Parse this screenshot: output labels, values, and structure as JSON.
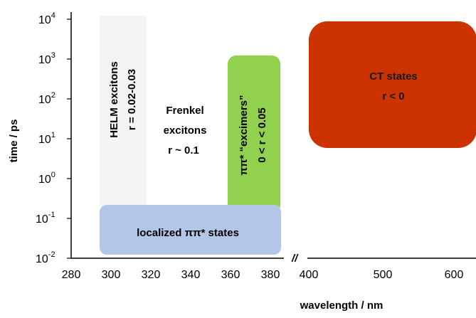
{
  "axes": {
    "xlabel": "wavelength / nm",
    "ylabel": "time / ps",
    "x_ticks_left": [
      "280",
      "300",
      "320",
      "340",
      "360",
      "380"
    ],
    "x_ticks_right": [
      "400",
      "500",
      "600"
    ],
    "y_ticks": [
      {
        "base": "10",
        "exp": "-2"
      },
      {
        "base": "10",
        "exp": "-1"
      },
      {
        "base": "10",
        "exp": "0"
      },
      {
        "base": "10",
        "exp": "1"
      },
      {
        "base": "10",
        "exp": "2"
      },
      {
        "base": "10",
        "exp": "3"
      },
      {
        "base": "10",
        "exp": "4"
      }
    ],
    "break_mark": "//"
  },
  "regions": {
    "helm": {
      "line1": "HELM excitons",
      "line2": "r = 0.02-0.03"
    },
    "frenkel": {
      "line1": "Frenkel",
      "line2": "excitons",
      "line3": "r ~ 0.1"
    },
    "excimers": {
      "line1": "ππ* “excimers”",
      "line2": "0 < r < 0.05",
      "color": "#92d050"
    },
    "localized": {
      "label": "localized ππ* states",
      "color": "#b4c6e7"
    },
    "ct": {
      "line1": "CT states",
      "line2": "r < 0",
      "color": "#cc3300"
    }
  },
  "colors": {
    "helm_background": "#f4f4f4"
  }
}
